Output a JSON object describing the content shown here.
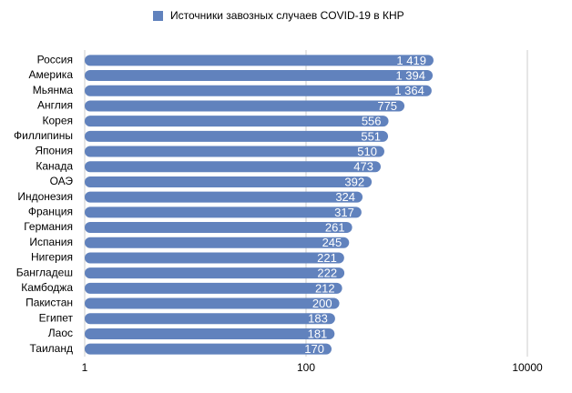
{
  "chart_data": {
    "type": "hbar",
    "categories": [
      "Россия",
      "Америка",
      "Мьянма",
      "Англия",
      "Корея",
      "Филлипины",
      "Япония",
      "Канада",
      "ОАЭ",
      "Индонезия",
      "Франция",
      "Германия",
      "Испания",
      "Нигерия",
      "Бангладеш",
      "Камбоджа",
      "Пакистан",
      "Египет",
      "Лаос",
      "Таиланд"
    ],
    "series": [
      {
        "name": "Источники завозных случаев COVID-19 в КНР",
        "color": "#6182bd",
        "values": [
          1419,
          1394,
          1364,
          775,
          556,
          551,
          510,
          473,
          392,
          324,
          317,
          261,
          245,
          221,
          222,
          212,
          200,
          183,
          181,
          170
        ],
        "value_labels": [
          "1 419",
          "1 394",
          "1 364",
          "775",
          "556",
          "551",
          "510",
          "473",
          "392",
          "324",
          "317",
          "261",
          "245",
          "221",
          "222",
          "212",
          "200",
          "183",
          "181",
          "170"
        ]
      }
    ],
    "xlim": [
      1,
      10000
    ],
    "xticks": [
      1,
      100,
      10000
    ],
    "log_scale": true,
    "grid": true,
    "legend": "top"
  }
}
